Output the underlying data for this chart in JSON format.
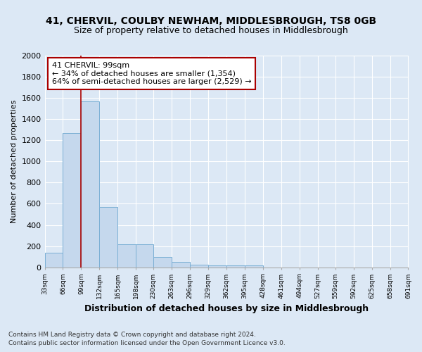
{
  "title1": "41, CHERVIL, COULBY NEWHAM, MIDDLESBROUGH, TS8 0GB",
  "title2": "Size of property relative to detached houses in Middlesbrough",
  "xlabel": "Distribution of detached houses by size in Middlesbrough",
  "ylabel": "Number of detached properties",
  "footnote1": "Contains HM Land Registry data © Crown copyright and database right 2024.",
  "footnote2": "Contains public sector information licensed under the Open Government Licence v3.0.",
  "annotation_title": "41 CHERVIL: 99sqm",
  "annotation_line2": "← 34% of detached houses are smaller (1,354)",
  "annotation_line3": "64% of semi-detached houses are larger (2,529) →",
  "property_size": 99,
  "bar_edges": [
    33,
    66,
    99,
    132,
    165,
    198,
    230,
    263,
    296,
    329,
    362,
    395,
    428,
    461,
    494,
    527,
    559,
    592,
    625,
    658,
    691
  ],
  "bar_heights": [
    140,
    1270,
    1570,
    570,
    215,
    215,
    100,
    50,
    25,
    20,
    20,
    20,
    0,
    0,
    0,
    0,
    0,
    0,
    0,
    0
  ],
  "bar_color": "#c5d8ed",
  "bar_edge_color": "#7aafd4",
  "vline_color": "#aa0000",
  "vline_x": 99,
  "ylim": [
    0,
    2000
  ],
  "yticks": [
    0,
    200,
    400,
    600,
    800,
    1000,
    1200,
    1400,
    1600,
    1800,
    2000
  ],
  "bg_color": "#dce8f5",
  "grid_color": "#ffffff",
  "annotation_box_color": "#ffffff",
  "annotation_box_edge": "#aa0000",
  "title_fontsize": 10,
  "subtitle_fontsize": 9
}
